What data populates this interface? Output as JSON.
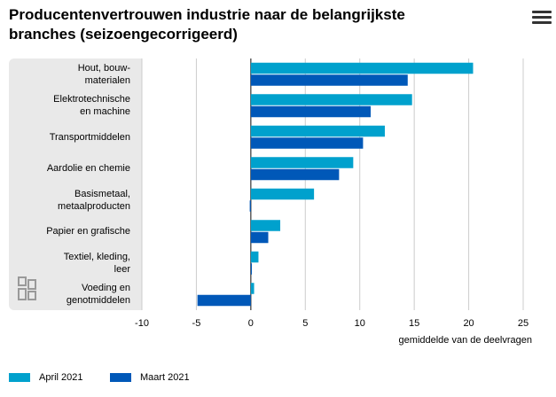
{
  "header": {
    "title_line1": "Producentenvertrouwen industrie naar de belangrijkste",
    "title_line2": "branches (seizoengecorrigeerd)"
  },
  "icons": {
    "menu": "hamburger-menu-icon",
    "logo": "cbs-logo-icon"
  },
  "colors": {
    "april": "#00a1cd",
    "maart": "#0058b8",
    "panel": "#e9e9e9",
    "grid": "#cccccc"
  },
  "chart_data": {
    "type": "bar",
    "orientation": "horizontal",
    "categories": [
      [
        "Hout, bouw-",
        "materialen"
      ],
      [
        "Elektrotechnische",
        "en machine"
      ],
      [
        "Transportmiddelen"
      ],
      [
        "Aardolie en chemie"
      ],
      [
        "Basismetaal,",
        "metaalproducten"
      ],
      [
        "Papier en grafische"
      ],
      [
        "Textiel, kleding,",
        "leer"
      ],
      [
        "Voeding en",
        "genotmiddelen"
      ]
    ],
    "series": [
      {
        "name": "April 2021",
        "values": [
          20.4,
          14.8,
          12.3,
          9.4,
          5.8,
          2.7,
          0.7,
          0.3
        ]
      },
      {
        "name": "Maart 2021",
        "values": [
          14.4,
          11.0,
          10.3,
          8.1,
          -0.1,
          1.6,
          0.0,
          -4.9
        ]
      }
    ],
    "xlabel": "gemiddelde van de deelvragen",
    "xlim": [
      -10,
      25
    ],
    "xticks": [
      -10,
      -5,
      0,
      5,
      10,
      15,
      20,
      25
    ],
    "legend_position": "bottom-left",
    "grid": true
  }
}
